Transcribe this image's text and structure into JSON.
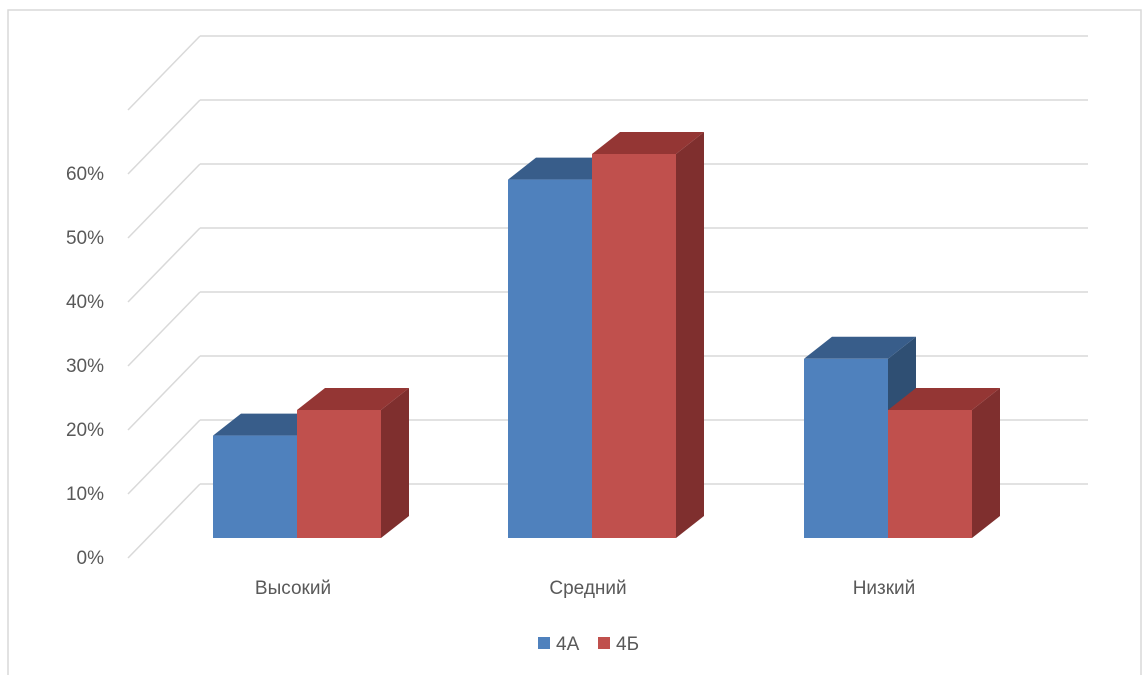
{
  "chart_data": {
    "type": "bar",
    "title": "",
    "xlabel": "",
    "ylabel": "",
    "categories": [
      "Высокий",
      "Средний",
      "Низкий"
    ],
    "series": [
      {
        "name": "4А",
        "values": [
          16,
          56,
          28
        ],
        "color": "#4F81BD",
        "top_color": "#385D8A",
        "side_color": "#2F4F73"
      },
      {
        "name": "4Б",
        "values": [
          20,
          60,
          20
        ],
        "color": "#C0504D",
        "top_color": "#943634",
        "side_color": "#7F2F2E"
      }
    ],
    "y_ticks": [
      "0%",
      "10%",
      "20%",
      "30%",
      "40%",
      "50%",
      "60%"
    ],
    "ylim": [
      0,
      70
    ],
    "grid": true,
    "legend_position": "bottom"
  }
}
